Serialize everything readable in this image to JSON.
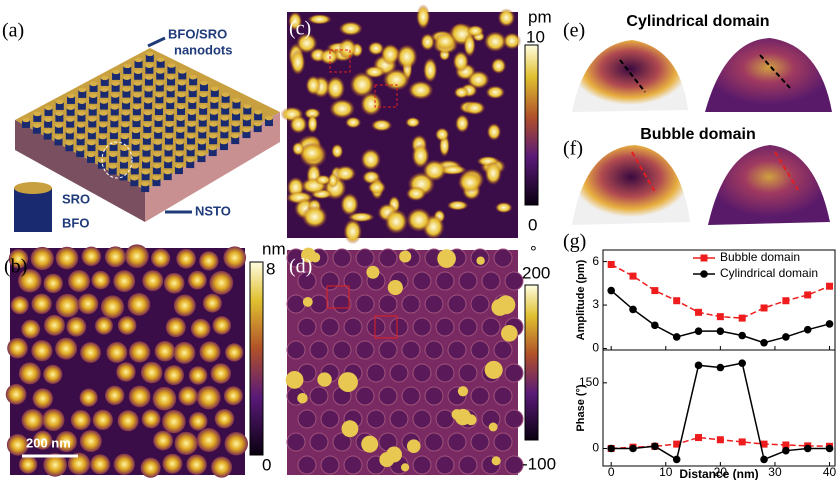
{
  "panels": {
    "a": {
      "label": "(a)",
      "dots_line1": "BFO/SRO",
      "dots_line2": "nanodots",
      "sro": "SRO",
      "bfo": "BFO",
      "substrate": "NSTO"
    },
    "b": {
      "label": "(b)",
      "unit": "nm",
      "max": 8,
      "min": 0,
      "scale_bar": "200 nm"
    },
    "c": {
      "label": "(c)",
      "unit": "pm",
      "max": 10,
      "min": 0
    },
    "d": {
      "label": "(d)",
      "unit": "°",
      "max": 200,
      "min": -100
    },
    "e": {
      "label": "(e)",
      "title": "Cylindrical domain"
    },
    "f": {
      "label": "(f)",
      "title": "Bubble domain"
    },
    "g": {
      "label": "(g)"
    }
  },
  "chart_data": [
    {
      "type": "line",
      "ylabel": "Amplitude (pm)",
      "x": [
        0,
        4,
        8,
        12,
        16,
        20,
        24,
        28,
        32,
        36,
        40
      ],
      "xlim": [
        -1.5,
        41
      ],
      "xticks": [
        0,
        10,
        20,
        30,
        40
      ],
      "ylim": [
        -0.1,
        6.8
      ],
      "yticks": [
        0,
        3,
        6
      ],
      "legend": "upper right",
      "series": [
        {
          "name": "Bubble domain",
          "color": "#ee1c1c",
          "marker": "square",
          "values": [
            5.8,
            5.0,
            4.0,
            3.3,
            2.5,
            2.2,
            2.1,
            2.8,
            3.3,
            3.7,
            4.3
          ]
        },
        {
          "name": "Cylindrical domain",
          "color": "#000000",
          "marker": "circle",
          "values": [
            4.0,
            2.7,
            1.6,
            0.8,
            1.2,
            1.2,
            0.9,
            0.4,
            0.8,
            1.3,
            1.7
          ]
        }
      ]
    },
    {
      "type": "line",
      "ylabel": "Phase (°)",
      "xlabel": "Distance (nm)",
      "x": [
        0,
        4,
        8,
        12,
        16,
        20,
        24,
        28,
        32,
        36,
        40
      ],
      "xlim": [
        -1.5,
        41
      ],
      "xticks": [
        0,
        10,
        20,
        30,
        40
      ],
      "ylim": [
        -40,
        225
      ],
      "yticks": [
        0,
        150
      ],
      "series": [
        {
          "color": "#ee1c1c",
          "marker": "square",
          "values": [
            0,
            3,
            5,
            10,
            25,
            20,
            15,
            10,
            8,
            6,
            5
          ]
        },
        {
          "color": "#000000",
          "marker": "circle",
          "values": [
            0,
            0,
            5,
            -25,
            190,
            185,
            195,
            -25,
            -5,
            0,
            0
          ]
        }
      ]
    }
  ]
}
